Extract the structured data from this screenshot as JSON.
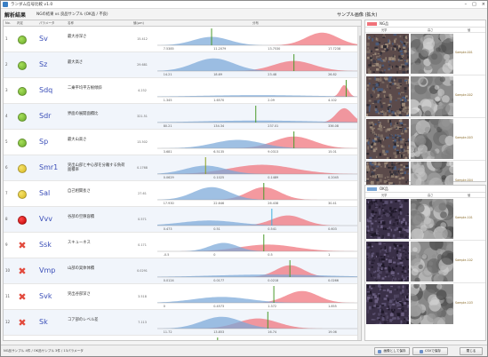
{
  "window": {
    "title": "ランダム信号比較 v1.0",
    "controls": [
      "–",
      "□",
      "×"
    ]
  },
  "toolbar": {
    "heading": "解析結果",
    "subtitle": "NGの結果 vs 良品サンプル (OK品 / 不良)",
    "right_label": "サンプル画像 (拡大)"
  },
  "table": {
    "headers": {
      "no": "No.",
      "status": "判定",
      "param": "パラメータ",
      "desc": "名称",
      "value": "値(μm)",
      "dist": "分布"
    },
    "rows": [
      {
        "no": "1",
        "status": "green",
        "code": "Sv",
        "desc": "最大谷深さ",
        "value": "15.412",
        "ticks": [
          "7.5385",
          "11.2079",
          "13.7530",
          "17.7238"
        ],
        "p1": 0.27,
        "w1": 0.09,
        "h1": 0.5,
        "p2": 0.82,
        "w2": 0.08,
        "h2": 0.75,
        "g": 0.27,
        "gc": "#4a9a2a"
      },
      {
        "no": "2",
        "status": "green",
        "code": "Sz",
        "desc": "最大高さ",
        "value": "29.681",
        "ticks": [
          "14.21",
          "18.69",
          "23.48",
          "26.82"
        ],
        "p1": 0.28,
        "w1": 0.1,
        "h1": 0.75,
        "p2": 0.68,
        "w2": 0.1,
        "h2": 0.6,
        "g": 0.68,
        "gc": "#4a9a2a"
      },
      {
        "no": "3",
        "status": "green",
        "code": "Sdq",
        "desc": "二乗平均平方根傾斜",
        "value": "4.232",
        "ticks": [
          "1.345",
          "1.6570",
          "2.09",
          "4.102"
        ],
        "p1": 0.5,
        "w1": 0.28,
        "h1": 0.1,
        "p2": 0.93,
        "w2": 0.02,
        "h2": 0.7,
        "g": 0.94,
        "gc": "#4a9a2a"
      },
      {
        "no": "4",
        "status": "green",
        "code": "Sdr",
        "desc": "界面の展開面積比",
        "value": "321.51",
        "ticks": [
          "80.21",
          "134.34",
          "237.01",
          "336.08"
        ],
        "p1": 0.5,
        "w1": 0.28,
        "h1": 0.12,
        "p2": 0.93,
        "w2": 0.04,
        "h2": 0.85,
        "g": 0.49,
        "gc": "#4a9a2a"
      },
      {
        "no": "5",
        "status": "green",
        "code": "Sp",
        "desc": "最大山高さ",
        "value": "13.502",
        "ticks": [
          "3.681",
          "6.5135",
          "9.0313",
          "15.01"
        ],
        "p1": 0.4,
        "w1": 0.12,
        "h1": 0.5,
        "p2": 0.68,
        "w2": 0.1,
        "h2": 0.7,
        "g": 0.68,
        "gc": "#4a9a2a"
      },
      {
        "no": "6",
        "status": "yellow",
        "code": "Smr1",
        "desc": "突出山部と中心部を分離する負荷面積率",
        "value": "0.1768",
        "ticks": [
          "0.0629",
          "0.1025",
          "0.1489",
          "0.2045"
        ],
        "p1": 0.24,
        "w1": 0.1,
        "h1": 0.5,
        "p2": 0.52,
        "w2": 0.16,
        "h2": 0.55,
        "g": 0.24,
        "gc": "#8aa020"
      },
      {
        "no": "7",
        "status": "yellow",
        "code": "Sal",
        "desc": "自己相関長さ",
        "value": "27.61",
        "ticks": [
          "17.930",
          "22.646",
          "26.438",
          "30.41"
        ],
        "p1": 0.27,
        "w1": 0.09,
        "h1": 0.75,
        "p2": 0.53,
        "w2": 0.08,
        "h2": 0.75,
        "g": 0.53,
        "gc": "#4a9a2a"
      },
      {
        "no": "8",
        "status": "red",
        "code": "Vvv",
        "desc": "谷部の空隙容積",
        "value": "0.571",
        "ticks": [
          "0.473",
          "0.51",
          "0.541",
          "0.603"
        ],
        "p1": 0.26,
        "w1": 0.14,
        "h1": 0.3,
        "p2": 0.65,
        "w2": 0.08,
        "h2": 0.6,
        "g": 0.57,
        "gc": "#40b0e0"
      },
      {
        "no": "9",
        "status": "x",
        "code": "Ssk",
        "desc": "スキューネス",
        "value": "0.171",
        "ticks": [
          "-0.5",
          "0",
          "0.5",
          "1"
        ],
        "p1": 0.33,
        "w1": 0.07,
        "h1": 0.5,
        "p2": 0.55,
        "w2": 0.14,
        "h2": 0.4,
        "g": 0.53,
        "gc": "#4a9a2a"
      },
      {
        "no": "10",
        "status": "x",
        "code": "Vmp",
        "desc": "山部の実体体積",
        "value": "0.0291",
        "ticks": [
          "0.0124",
          "0.0177",
          "0.0218",
          "0.0266"
        ],
        "p1": 0.56,
        "w1": 0.28,
        "h1": 0.15,
        "p2": 0.66,
        "w2": 0.07,
        "h2": 0.7,
        "g": 0.66,
        "gc": "#4a9a2a"
      },
      {
        "no": "11",
        "status": "x",
        "code": "Svk",
        "desc": "突出谷部深さ",
        "value": "3.518",
        "ticks": [
          "0",
          "0.4573",
          "1.372",
          "1.855"
        ],
        "p1": 0.32,
        "w1": 0.14,
        "h1": 0.35,
        "p2": 0.72,
        "w2": 0.08,
        "h2": 0.7,
        "g": 0.58,
        "gc": "#4a9a2a"
      },
      {
        "no": "12",
        "status": "x",
        "code": "Sk",
        "desc": "コア部のレベル差",
        "value": "7.113",
        "ticks": [
          "11.72",
          "13.853",
          "16.74",
          "19.06"
        ],
        "p1": 0.32,
        "w1": 0.1,
        "h1": 0.7,
        "p2": 0.5,
        "w2": 0.1,
        "h2": 0.6,
        "g": 0.55,
        "gc": "#4a9a2a"
      },
      {
        "no": "13",
        "status": "x",
        "code": "Sq",
        "desc": "二乗平均平方根高さ",
        "value": "4.127",
        "ticks": [
          "1.94",
          "2.174",
          "2.4895",
          "2.72"
        ],
        "p1": 0.3,
        "w1": 0.1,
        "h1": 0.55,
        "p2": 0.5,
        "w2": 0.1,
        "h2": 0.45,
        "g": 0.3,
        "gc": "#4a9a2a"
      }
    ]
  },
  "panel": {
    "ng": {
      "label": "NG品",
      "color": "#f0727a",
      "col1": "光学",
      "col2": "高さ",
      "col3": "値",
      "items": [
        {
          "label": "Sample-001"
        },
        {
          "label": "Sample-002"
        },
        {
          "label": "Sample-003"
        },
        {
          "label": "Sample-004"
        }
      ]
    },
    "ok": {
      "label": "OK品",
      "color": "#7aa8d8",
      "col1": "光学",
      "col2": "高さ",
      "col3": "値",
      "items": [
        {
          "label": "Sample-101"
        },
        {
          "label": "Sample-102"
        },
        {
          "label": "Sample-103"
        }
      ]
    }
  },
  "statusbar": {
    "text": "NG品サンプル 4件 / OK品サンプル 3件 / 13パラメータ",
    "btn_export": "画像として保存",
    "btn_csv": "CSVで保存",
    "btn_close": "閉じる"
  },
  "colors": {
    "ng": "#f0727a",
    "ok": "#7aa8d8"
  }
}
